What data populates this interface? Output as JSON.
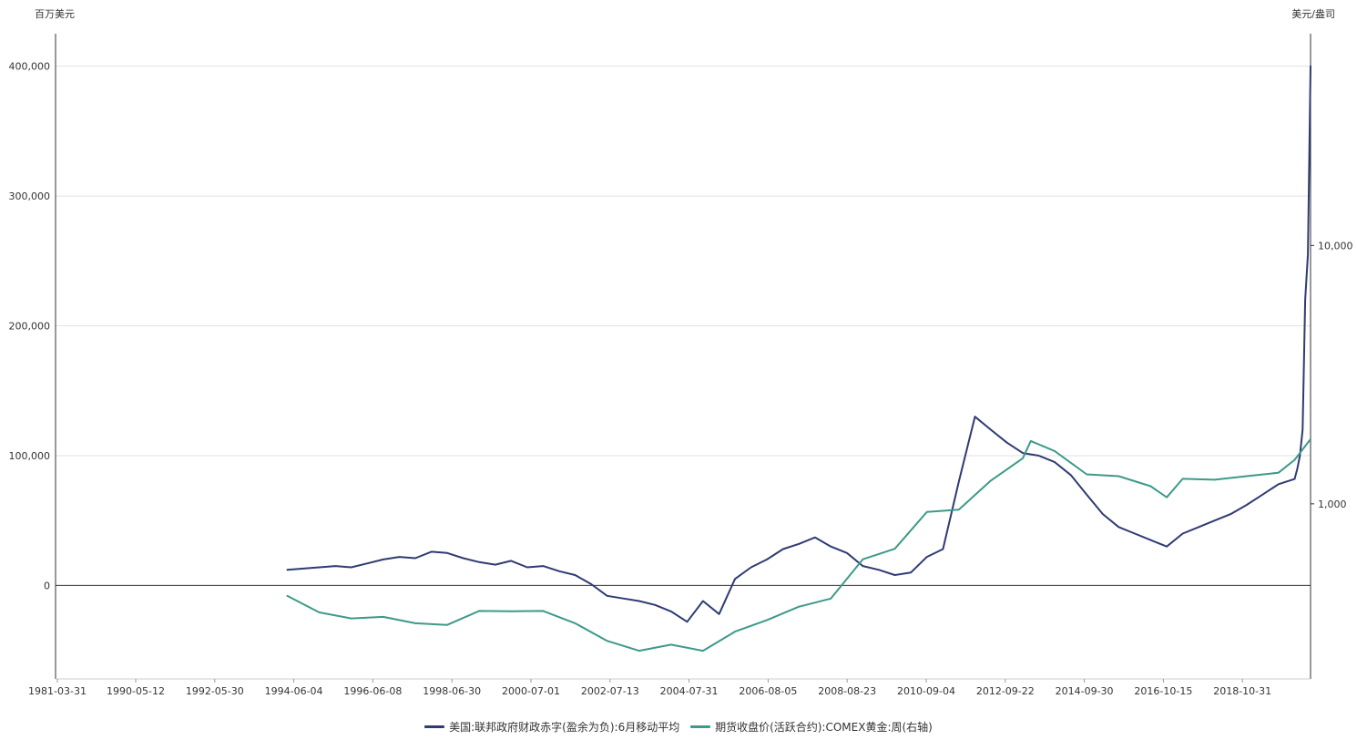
{
  "chart_data": {
    "type": "line",
    "y_left_label": "百万美元",
    "y_right_label": "美元/盎司",
    "y_left_ticks": [
      0,
      100000,
      200000,
      300000,
      400000
    ],
    "y_left_tick_labels": [
      "0",
      "100,000",
      "200,000",
      "300,000",
      "400,000"
    ],
    "y_left_range": [
      -72000,
      425000
    ],
    "y_right_ticks": [
      1000,
      10000
    ],
    "y_right_tick_labels": [
      "1,000",
      "10,000"
    ],
    "y_right_scale": "log",
    "y_right_range": [
      210,
      66000
    ],
    "x_tick_labels": [
      "1981-03-31",
      "1990-05-12",
      "1992-05-30",
      "1994-06-04",
      "1996-06-08",
      "1998-06-30",
      "2000-07-01",
      "2002-07-13",
      "2004-07-31",
      "2006-08-05",
      "2008-08-23",
      "2010-09-04",
      "2012-09-22",
      "2014-09-30",
      "2016-10-15",
      "2018-10-31"
    ],
    "grid": true,
    "legend_position": "bottom",
    "series": [
      {
        "name": "美国:联邦政府财政赤字(盈余为负):6月移动平均",
        "axis": "left",
        "color": "#2f3b73",
        "x": [
          "1988-06-30",
          "1989-12-31",
          "1990-06-30",
          "1990-12-31",
          "1991-06-30",
          "1991-12-31",
          "1992-06-30",
          "1992-12-31",
          "1993-06-30",
          "1993-12-31",
          "1994-06-30",
          "1994-12-31",
          "1995-06-30",
          "1995-12-31",
          "1996-06-30",
          "1996-12-31",
          "1997-06-30",
          "1997-12-31",
          "1998-06-30",
          "1998-12-31",
          "1999-06-30",
          "1999-12-31",
          "2000-06-30",
          "2000-12-31",
          "2001-06-30",
          "2001-12-31",
          "2002-06-30",
          "2002-12-31",
          "2003-06-30",
          "2003-12-31",
          "2004-06-30",
          "2004-12-31",
          "2005-06-30",
          "2005-12-31",
          "2006-06-30",
          "2006-12-31",
          "2007-06-30",
          "2007-12-31",
          "2008-06-30",
          "2008-12-31",
          "2009-06-30",
          "2009-12-31",
          "2010-06-30",
          "2010-12-31",
          "2011-06-30",
          "2011-12-31",
          "2012-06-30",
          "2012-12-31",
          "2013-06-30",
          "2013-12-31",
          "2014-06-30",
          "2014-12-31",
          "2015-06-30",
          "2015-12-31",
          "2016-06-30",
          "2016-12-31",
          "2017-06-30",
          "2017-12-31",
          "2018-06-30",
          "2018-12-31",
          "2019-06-30",
          "2019-12-31",
          "2020-01-31",
          "2020-02-29",
          "2020-03-31",
          "2020-04-30",
          "2020-05-31",
          "2020-06-30"
        ],
        "values": [
          12000,
          15000,
          14000,
          17000,
          20000,
          22000,
          21000,
          26000,
          25000,
          21000,
          18000,
          16000,
          19000,
          14000,
          15000,
          11000,
          8000,
          1000,
          -8000,
          -10000,
          -12000,
          -15000,
          -20000,
          -28000,
          -12000,
          -22000,
          5000,
          14000,
          20000,
          28000,
          32000,
          37000,
          30000,
          25000,
          15000,
          12000,
          8000,
          10000,
          22000,
          28000,
          80000,
          130000,
          120000,
          110000,
          102000,
          100000,
          95000,
          85000,
          70000,
          55000,
          45000,
          40000,
          35000,
          30000,
          40000,
          45000,
          50000,
          55000,
          62000,
          70000,
          78000,
          82000,
          90000,
          100000,
          120000,
          220000,
          255000,
          400000
        ]
      },
      {
        "name": "期货收盘价(活跃合约):COMEX黄金:周(右轴)",
        "axis": "right",
        "color": "#3c9a8a",
        "x": [
          "1988-06-30",
          "1989-06-30",
          "1990-06-30",
          "1991-06-30",
          "1992-06-30",
          "1993-06-30",
          "1994-06-30",
          "1995-06-30",
          "1996-06-30",
          "1997-06-30",
          "1998-06-30",
          "1999-06-30",
          "2000-06-30",
          "2001-06-30",
          "2002-06-30",
          "2003-06-30",
          "2004-06-30",
          "2005-06-30",
          "2006-06-30",
          "2007-06-30",
          "2008-06-30",
          "2009-06-30",
          "2010-06-30",
          "2011-06-30",
          "2011-09-30",
          "2012-06-30",
          "2013-06-30",
          "2014-06-30",
          "2015-06-30",
          "2015-12-31",
          "2016-06-30",
          "2017-06-30",
          "2018-06-30",
          "2019-06-30",
          "2019-12-31",
          "2020-06-30"
        ],
        "values": [
          440,
          380,
          360,
          365,
          345,
          340,
          385,
          384,
          385,
          345,
          295,
          270,
          285,
          270,
          320,
          355,
          400,
          430,
          610,
          670,
          930,
          950,
          1230,
          1500,
          1750,
          1600,
          1300,
          1280,
          1170,
          1060,
          1250,
          1240,
          1280,
          1320,
          1480,
          1780
        ]
      }
    ]
  }
}
